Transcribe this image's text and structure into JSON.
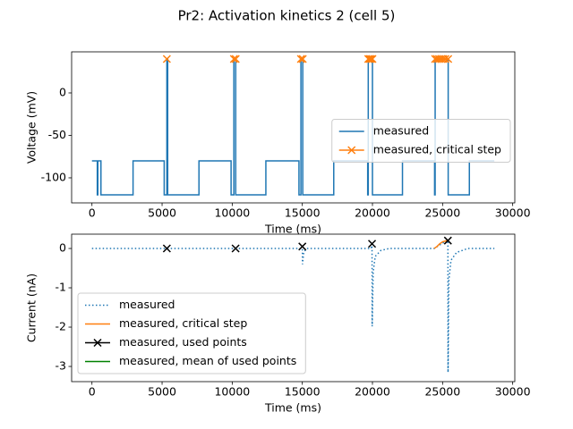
{
  "title": "Pr2: Activation kinetics 2 (cell 5)",
  "chart_data": [
    {
      "type": "line",
      "xlabel": "Time (ms)",
      "ylabel": "Voltage (mV)",
      "xlim": [
        -1450,
        30150
      ],
      "ylim": [
        -129.5,
        48.4
      ],
      "xticks": [
        0,
        5000,
        10000,
        15000,
        20000,
        25000,
        30000
      ],
      "yticks": [
        -100,
        -50,
        0
      ],
      "legend": "center right",
      "series": [
        {
          "name": "measured",
          "color": "#1f77b4",
          "style": "solid",
          "x": [
            0,
            380,
            380,
            420,
            420,
            640,
            640,
            2930,
            2930,
            5150,
            5150,
            5340,
            5340,
            5400,
            5400,
            7630,
            7630,
            9920,
            9920,
            10120,
            10120,
            10250,
            10250,
            12400,
            12400,
            14760,
            14760,
            14900,
            14900,
            15030,
            15030,
            17240,
            17240,
            19660,
            19660,
            19700,
            19700,
            20000,
            20000,
            22140,
            22140,
            24430,
            24430,
            24470,
            24470,
            25400,
            25400,
            26910,
            26910,
            28690
          ],
          "values": [
            -80,
            -80,
            -120,
            -120,
            -80,
            -80,
            -120,
            -120,
            -80,
            -80,
            -120,
            -120,
            40,
            40,
            -120,
            -120,
            -80,
            -80,
            -120,
            -120,
            40,
            40,
            -120,
            -120,
            -80,
            -80,
            -120,
            -120,
            40,
            40,
            -120,
            -120,
            -80,
            -80,
            -120,
            -120,
            40,
            40,
            -120,
            -120,
            -80,
            -80,
            -120,
            -120,
            40,
            40,
            -120,
            -120,
            -80,
            -80
          ]
        },
        {
          "name": "measured, critical step",
          "color": "#ff7f0e",
          "style": "solid",
          "marker": "x",
          "x": [
            5340,
            null,
            10120,
            10250,
            null,
            14900,
            15030,
            null,
            19700,
            19800,
            19900,
            20000,
            null,
            24470,
            24600,
            24750,
            24900,
            25050,
            25200,
            25400
          ],
          "values": [
            40,
            null,
            40,
            40,
            null,
            40,
            40,
            null,
            40,
            40,
            40,
            40,
            null,
            40,
            40,
            40,
            40,
            40,
            40,
            40
          ]
        }
      ]
    },
    {
      "type": "line",
      "xlabel": "Time (ms)",
      "ylabel": "Current (nA)",
      "xlim": [
        -1450,
        30150
      ],
      "ylim": [
        -3.386,
        0.364
      ],
      "xticks": [
        0,
        5000,
        10000,
        15000,
        20000,
        25000,
        30000
      ],
      "yticks": [
        -3,
        -2,
        -1,
        0
      ],
      "legend": "lower left",
      "series": [
        {
          "name": "measured",
          "color": "#1f77b4",
          "style": "dotted",
          "x": [
            0,
            14990,
            15000,
            15010,
            15100,
            15300,
            19900,
            19970,
            19980,
            20050,
            20200,
            20600,
            21200,
            24400,
            25300,
            25380,
            25390,
            25450,
            25600,
            26000,
            26800,
            28690
          ],
          "values": [
            0,
            0,
            0.05,
            -0.4,
            -0.1,
            0,
            0,
            0.12,
            -1.98,
            -0.6,
            -0.2,
            -0.05,
            0,
            0,
            0.2,
            0.2,
            -3.15,
            -0.8,
            -0.3,
            -0.1,
            0,
            0
          ]
        },
        {
          "name": "measured, critical step",
          "color": "#ff7f0e",
          "style": "solid",
          "x": [
            24400,
            24600,
            24800,
            25000,
            25300
          ],
          "values": [
            0,
            0.05,
            0.12,
            0.17,
            0.2
          ]
        },
        {
          "name": "measured, used points",
          "color": "#000000",
          "style": "solid",
          "marker": "x",
          "connect": false,
          "x": [
            5340,
            10240,
            15000,
            19970,
            25380
          ],
          "values": [
            0,
            0,
            0.05,
            0.12,
            0.2
          ]
        },
        {
          "name": "measured, mean of used points",
          "color": "#008000",
          "style": "solid",
          "x": [],
          "values": []
        }
      ]
    }
  ]
}
